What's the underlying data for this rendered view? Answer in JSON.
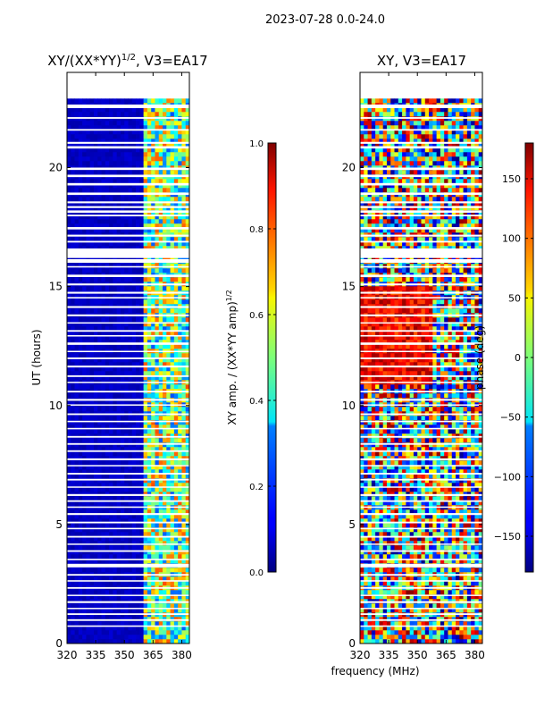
{
  "suptitle": "2023-07-28 0.0-24.0",
  "xlabel_shared": "frequency (MHz)",
  "chart_data": [
    {
      "type": "heatmap",
      "title": "XY/(XX*YY)^{1/2}, V3=EA17",
      "title_main": "XY/(XX*YY)",
      "title_sup": "1/2",
      "title_tail": ", V3=EA17",
      "xlabel": "",
      "ylabel": "UT (hours)",
      "xlim": [
        320,
        384
      ],
      "ylim": [
        0,
        24
      ],
      "xticks": [
        "320",
        "335",
        "350",
        "365",
        "380"
      ],
      "xtick_values": [
        320,
        335,
        350,
        365,
        380
      ],
      "yticks": [
        "0",
        "5",
        "10",
        "15",
        "20"
      ],
      "ytick_values": [
        0,
        5,
        10,
        15,
        20
      ],
      "data_ut_range": [
        0,
        22.9
      ],
      "colorbar": {
        "label": "XY amp. / (XX*YY amp)^{1/2}",
        "label_main": "XY amp. / (XX*YY amp)",
        "label_sup": "1/2",
        "range": [
          0.0,
          1.0
        ],
        "ticks": [
          "0.0",
          "0.2",
          "0.4",
          "0.6",
          "0.8",
          "1.0"
        ],
        "tick_values": [
          0.0,
          0.2,
          0.4,
          0.6,
          0.8,
          1.0
        ],
        "colormap": "jet"
      },
      "description": "Mostly low amplitude (~0.05) across 320-360 MHz; elevated amplitude (0.3-0.8) in vertical stripes between ~360 and 382 MHz."
    },
    {
      "type": "heatmap",
      "title": "XY, V3=EA17",
      "xlabel": "",
      "ylabel": "",
      "xlim": [
        320,
        384
      ],
      "ylim": [
        0,
        24
      ],
      "xticks": [
        "320",
        "335",
        "350",
        "365",
        "380"
      ],
      "xtick_values": [
        320,
        335,
        350,
        365,
        380
      ],
      "yticks": [
        "0",
        "5",
        "10",
        "15",
        "20"
      ],
      "ytick_values": [
        0,
        5,
        10,
        15,
        20
      ],
      "data_ut_range": [
        0,
        22.9
      ],
      "colorbar": {
        "label": "phase (deg)",
        "range": [
          -180,
          180
        ],
        "ticks": [
          "−150",
          "−100",
          "−50",
          "0",
          "50",
          "100",
          "150"
        ],
        "tick_values": [
          -150,
          -100,
          -50,
          0,
          50,
          100,
          150
        ],
        "colormap": "jet"
      },
      "description": "Phase varies across the full -180 to 180 degree range; predominantly high phase (~150) between 11 and 15 UT and noisy mixtures elsewhere."
    }
  ],
  "gaps_ut": [
    [
      22.5,
      22.65
    ],
    [
      22.05,
      22.12
    ],
    [
      21.55,
      21.62
    ],
    [
      21.0,
      21.08
    ],
    [
      20.8,
      20.9
    ],
    [
      19.9,
      20.0
    ],
    [
      19.6,
      19.7
    ],
    [
      19.25,
      19.35
    ],
    [
      18.85,
      18.95
    ],
    [
      18.5,
      18.58
    ],
    [
      18.3,
      18.38
    ],
    [
      18.1,
      18.2
    ],
    [
      17.95,
      18.02
    ],
    [
      17.4,
      17.5
    ],
    [
      17.1,
      17.18
    ],
    [
      16.85,
      16.92
    ],
    [
      16.2,
      16.6
    ],
    [
      16.0,
      16.15
    ],
    [
      15.8,
      15.86
    ],
    [
      15.4,
      15.5
    ],
    [
      15.05,
      15.13
    ],
    [
      14.7,
      14.78
    ],
    [
      14.5,
      14.56
    ],
    [
      14.1,
      14.18
    ],
    [
      13.75,
      13.83
    ],
    [
      13.45,
      13.5
    ],
    [
      13.1,
      13.17
    ],
    [
      12.9,
      12.96
    ],
    [
      12.55,
      12.65
    ],
    [
      12.25,
      12.3
    ],
    [
      11.95,
      12.02
    ],
    [
      11.6,
      11.68
    ],
    [
      11.2,
      11.27
    ],
    [
      10.95,
      11.0
    ],
    [
      10.55,
      10.62
    ],
    [
      10.2,
      10.28
    ],
    [
      10.0,
      10.05
    ],
    [
      9.6,
      9.67
    ],
    [
      9.3,
      9.36
    ],
    [
      9.0,
      9.06
    ],
    [
      8.65,
      8.72
    ],
    [
      8.35,
      8.42
    ],
    [
      8.05,
      8.12
    ],
    [
      7.7,
      7.78
    ],
    [
      7.45,
      7.5
    ],
    [
      7.1,
      7.17
    ],
    [
      6.85,
      6.92
    ],
    [
      6.55,
      6.6
    ],
    [
      6.2,
      6.28
    ],
    [
      5.95,
      6.02
    ],
    [
      5.7,
      5.76
    ],
    [
      5.4,
      5.48
    ],
    [
      5.05,
      5.12
    ],
    [
      4.8,
      4.86
    ],
    [
      4.45,
      4.52
    ],
    [
      4.15,
      4.2
    ],
    [
      3.85,
      3.92
    ],
    [
      3.5,
      3.56
    ],
    [
      3.2,
      3.35
    ],
    [
      2.85,
      2.92
    ],
    [
      2.6,
      2.66
    ],
    [
      2.3,
      2.37
    ],
    [
      2.0,
      2.05
    ],
    [
      1.7,
      1.78
    ],
    [
      1.45,
      1.5
    ],
    [
      1.2,
      1.27
    ],
    [
      0.95,
      1.02
    ],
    [
      0.7,
      0.76
    ]
  ]
}
